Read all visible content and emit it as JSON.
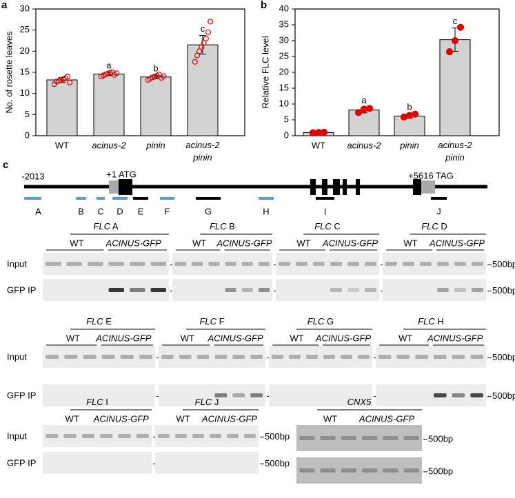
{
  "chart_data": [
    {
      "type": "bar",
      "panel": "a",
      "y_label": "No. of rosette leaves",
      "categories": [
        "WT",
        "acinus-2",
        "pinin",
        "acinus-2 pinin"
      ],
      "values": [
        13.2,
        14.6,
        13.9,
        21.5
      ],
      "errors": [
        0.6,
        0.4,
        0.4,
        2.2
      ],
      "letters": [
        null,
        "a",
        "b",
        "c"
      ],
      "points": [
        [
          12.2,
          12.8,
          13,
          13.2,
          13.4,
          13.6,
          14,
          12.6
        ],
        [
          14,
          14.3,
          14.5,
          14.7,
          14.9,
          15,
          14.4,
          14.8
        ],
        [
          13.2,
          13.5,
          13.8,
          14,
          14.2,
          14.5,
          13.7,
          14.1
        ],
        [
          17.5,
          19,
          20,
          21,
          22,
          23,
          24.5,
          27
        ]
      ],
      "ylim": [
        0,
        30
      ],
      "yticks": [
        0,
        5,
        10,
        15,
        20,
        25,
        30
      ],
      "color": "#d3d3d3",
      "point_color": "#e00000"
    },
    {
      "type": "bar",
      "panel": "b",
      "y_label": "Relative FLC level",
      "categories": [
        "WT",
        "acinus-2",
        "pinin",
        "acinus-2 pinin"
      ],
      "values": [
        1,
        8.1,
        6.2,
        30.3
      ],
      "errors": [
        0.3,
        0.9,
        0.7,
        3.7
      ],
      "letters": [
        null,
        "a",
        "b",
        "c"
      ],
      "points": [
        [
          0.9,
          1,
          1.1
        ],
        [
          7.3,
          8.4,
          8.6
        ],
        [
          5.9,
          6.4,
          6.8
        ],
        [
          26.5,
          30,
          34.2
        ]
      ],
      "ylim": [
        0,
        40
      ],
      "yticks": [
        0,
        5,
        10,
        15,
        20,
        25,
        30,
        35,
        40
      ],
      "color": "#d3d3d3",
      "point_color": "#e00000"
    }
  ],
  "panel_c": {
    "label": "c",
    "start": "-2013",
    "atg": "+1 ATG",
    "tag": "+5616 TAG",
    "amplicons": [
      "A",
      "B",
      "C",
      "D",
      "E",
      "F",
      "G",
      "H",
      "I",
      "J"
    ],
    "rows": [
      "Input",
      "GFP IP"
    ],
    "marker": "500bp",
    "gels": [
      {
        "gene": "FLC",
        "region": "A",
        "wt": "WT",
        "mutant": "ACINUS-GFP"
      },
      {
        "gene": "FLC",
        "region": "B",
        "wt": "WT",
        "mutant": "ACINUS-GFP"
      },
      {
        "gene": "FLC",
        "region": "C",
        "wt": "WT",
        "mutant": "ACINUS-GFP"
      },
      {
        "gene": "FLC",
        "region": "D",
        "wt": "WT",
        "mutant": "ACINUS-GFP"
      },
      {
        "gene": "FLC",
        "region": "E",
        "wt": "WT",
        "mutant": "ACINUS-GFP"
      },
      {
        "gene": "FLC",
        "region": "F",
        "wt": "WT",
        "mutant": "ACINUS-GFP"
      },
      {
        "gene": "FLC",
        "region": "G",
        "wt": "WT",
        "mutant": "ACINUS-GFP"
      },
      {
        "gene": "FLC",
        "region": "H",
        "wt": "WT",
        "mutant": "ACINUS-GFP"
      },
      {
        "gene": "FLC",
        "region": "I",
        "wt": "WT",
        "mutant": "ACINUS-GFP"
      },
      {
        "gene": "FLC",
        "region": "J",
        "wt": "WT",
        "mutant": "ACINUS-GFP"
      },
      {
        "gene": "CNX5",
        "wt": "WT",
        "mutant": "ACINUS-GFP"
      }
    ]
  }
}
